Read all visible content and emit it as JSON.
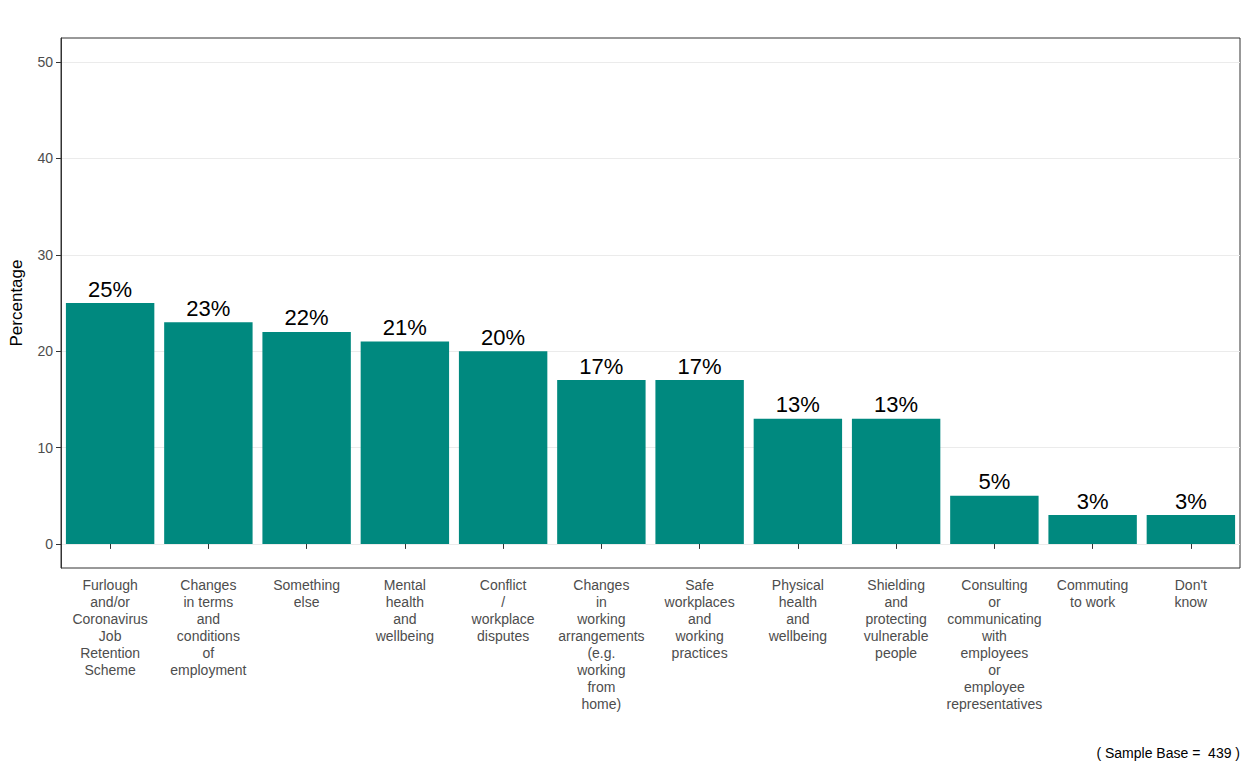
{
  "chart_data": {
    "type": "bar",
    "y_label": "Percentage",
    "annotation": "( Sample Base =  439 )",
    "categories": [
      "Furlough\nand/or\nCoronavirus\nJob\nRetention\nScheme",
      "Changes\nin terms\nand\nconditions\nof\nemployment",
      "Something\nelse",
      "Mental\nhealth\nand\nwellbeing",
      "Conflict\n/\nworkplace\ndisputes",
      "Changes\nin\nworking\narrangements\n(e.g.\nworking\nfrom\nhome)",
      "Safe\nworkplaces\nand\nworking\npractices",
      "Physical\nhealth\nand\nwellbeing",
      "Shielding\nand\nprotecting\nvulnerable\npeople",
      "Consulting\nor\ncommunicating\nwith\nemployees\nor\nemployee\nrepresentatives",
      "Commuting\nto work",
      "Don't\nknow"
    ],
    "values": [
      25,
      23,
      22,
      21,
      20,
      17,
      17,
      13,
      13,
      5,
      3,
      3
    ],
    "value_labels": [
      "25%",
      "23%",
      "22%",
      "21%",
      "20%",
      "17%",
      "17%",
      "13%",
      "13%",
      "5%",
      "3%",
      "3%"
    ],
    "color": "#00897f",
    "ylim": [
      -2.5,
      52.5
    ],
    "yticks": [
      0,
      10,
      20,
      30,
      40,
      50
    ],
    "grid": true,
    "data_labels": true
  }
}
